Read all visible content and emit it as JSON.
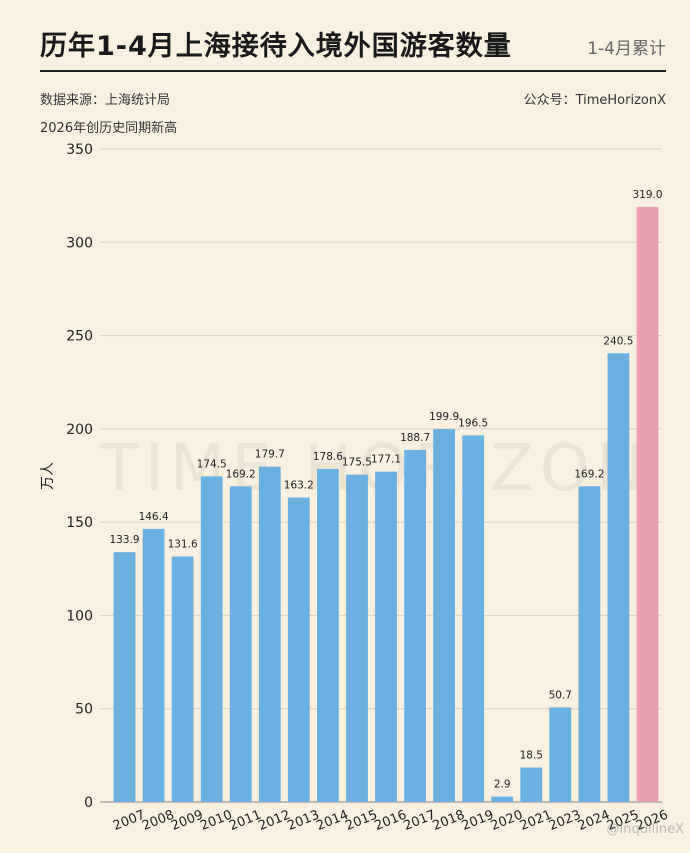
{
  "header": {
    "title": "历年1-4月上海接待入境外国游客数量",
    "right_label": "1-4月累计",
    "source": "数据来源：上海统计局",
    "account": "公众号：TimeHorizonX",
    "note": "2026年创历史同期新高"
  },
  "watermark": {
    "text": "TIME HORIZON",
    "corner": "@InquilineX"
  },
  "colors": {
    "bar": "#6ab0e0",
    "highlight": "#e8a0b0",
    "background": "#f8f1e0",
    "grid": "#d9d2c2"
  },
  "chart_data": {
    "type": "bar",
    "title": "历年1-4月上海接待入境外国游客数量",
    "ylabel": "万人",
    "xlabel": "",
    "ylim": [
      0,
      350
    ],
    "yticks": [
      0,
      50,
      100,
      150,
      200,
      250,
      300,
      350
    ],
    "categories": [
      "2007",
      "2008",
      "2009",
      "2010",
      "2011",
      "2012",
      "2013",
      "2014",
      "2015",
      "2016",
      "2017",
      "2018",
      "2019",
      "2020",
      "2021",
      "2023",
      "2024",
      "2025",
      "2026"
    ],
    "values": [
      133.9,
      146.4,
      131.6,
      174.5,
      169.2,
      179.7,
      163.2,
      178.6,
      175.5,
      177.1,
      188.7,
      199.9,
      196.5,
      2.9,
      18.5,
      50.7,
      169.2,
      240.5,
      319.0
    ],
    "value_labels": [
      "133.9",
      "146.4",
      "131.6",
      "174.5",
      "169.2",
      "179.7",
      "163.2",
      "178.6",
      "175.5",
      "177.1",
      "188.7",
      "199.9",
      "196.5",
      "2.9",
      "18.5",
      "50.7",
      "169.2",
      "240.5",
      "319.0"
    ],
    "highlight_category": "2026",
    "grid": true,
    "legend": "none"
  }
}
